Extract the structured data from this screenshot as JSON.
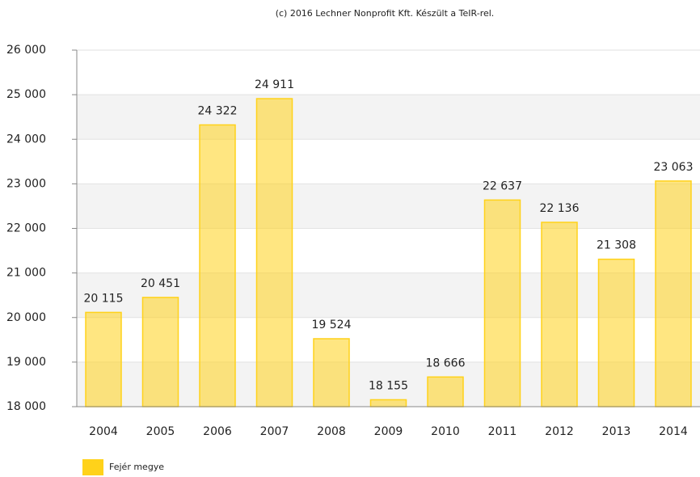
{
  "chart_data": {
    "type": "bar",
    "credit": "(c) 2016 Lechner Nonprofit Kft. Készült a TeIR-rel.",
    "categories": [
      "2004",
      "2005",
      "2006",
      "2007",
      "2008",
      "2009",
      "2010",
      "2011",
      "2012",
      "2013",
      "2014"
    ],
    "series": [
      {
        "name": "Fejér megye",
        "color": "#ffd21a",
        "values": [
          20115,
          20451,
          24322,
          24911,
          19524,
          18155,
          18666,
          22637,
          22136,
          21308,
          23063
        ],
        "value_labels": [
          "20 115",
          "20 451",
          "24 322",
          "24 911",
          "19 524",
          "18 155",
          "18 666",
          "22 637",
          "22 136",
          "21 308",
          "23 063"
        ]
      }
    ],
    "ylim": [
      18000,
      26000
    ],
    "yticks": [
      {
        "value": 18000,
        "label": "18 000"
      },
      {
        "value": 19000,
        "label": "19 000"
      },
      {
        "value": 20000,
        "label": "20 000"
      },
      {
        "value": 21000,
        "label": "21 000"
      },
      {
        "value": 22000,
        "label": "22 000"
      },
      {
        "value": 23000,
        "label": "23 000"
      },
      {
        "value": 24000,
        "label": "24 000"
      },
      {
        "value": 25000,
        "label": "25 000"
      },
      {
        "value": 26000,
        "label": "26 000"
      }
    ],
    "grid": true,
    "legend": "bottom-left"
  }
}
